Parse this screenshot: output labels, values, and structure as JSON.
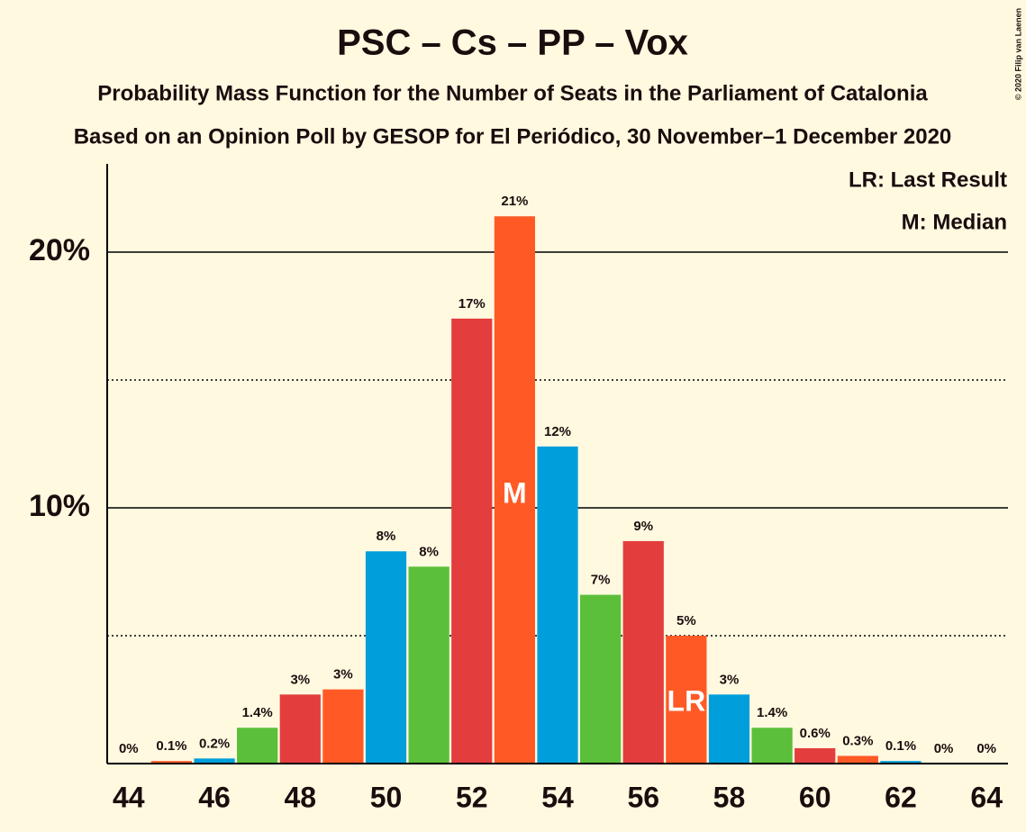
{
  "chart_data": {
    "type": "bar",
    "title": "PSC – Cs – PP – Vox",
    "subtitle": "Probability Mass Function for the Number of Seats in the Parliament of Catalonia",
    "subtitle2": "Based on an Opinion Poll by GESOP for El Periódico, 30 November–1 December 2020",
    "credit": "© 2020 Filip van Laenen",
    "legend": [
      "LR: Last Result",
      "M: Median"
    ],
    "x": [
      44,
      45,
      46,
      47,
      48,
      49,
      50,
      51,
      52,
      53,
      54,
      55,
      56,
      57,
      58,
      59,
      60,
      61,
      62,
      63,
      64
    ],
    "values": [
      0,
      0.1,
      0.2,
      1.4,
      2.7,
      2.9,
      8.3,
      7.7,
      17.4,
      21.4,
      12.4,
      6.6,
      8.7,
      5.0,
      2.7,
      1.4,
      0.6,
      0.3,
      0.1,
      0,
      0
    ],
    "value_labels": [
      "0%",
      "0.1%",
      "0.2%",
      "1.4%",
      "3%",
      "3%",
      "8%",
      "8%",
      "17%",
      "21%",
      "12%",
      "7%",
      "9%",
      "5%",
      "3%",
      "1.4%",
      "0.6%",
      "0.3%",
      "0.1%",
      "0%",
      "0%"
    ],
    "colors": [
      "#e33d3d",
      "#ff5a26",
      "#009fdb",
      "#5bbf3a",
      "#e33d3d",
      "#ff5a26",
      "#009fdb",
      "#5bbf3a",
      "#e33d3d",
      "#ff5a26",
      "#009fdb",
      "#5bbf3a",
      "#e33d3d",
      "#ff5a26",
      "#009fdb",
      "#5bbf3a",
      "#e33d3d",
      "#ff5a26",
      "#009fdb",
      "#5bbf3a",
      "#e33d3d"
    ],
    "markers": [
      {
        "label": "M",
        "x": 53
      },
      {
        "label": "LR",
        "x": 57
      }
    ],
    "xlim": [
      43.5,
      64.5
    ],
    "xticks": [
      44,
      46,
      48,
      50,
      52,
      54,
      56,
      58,
      60,
      62,
      64
    ],
    "ylim": [
      0,
      23.45
    ],
    "yticks": [
      {
        "value": 10,
        "label": "10%"
      },
      {
        "value": 20,
        "label": "20%"
      }
    ],
    "minor_yticks": [
      5,
      15
    ],
    "grid": true
  }
}
